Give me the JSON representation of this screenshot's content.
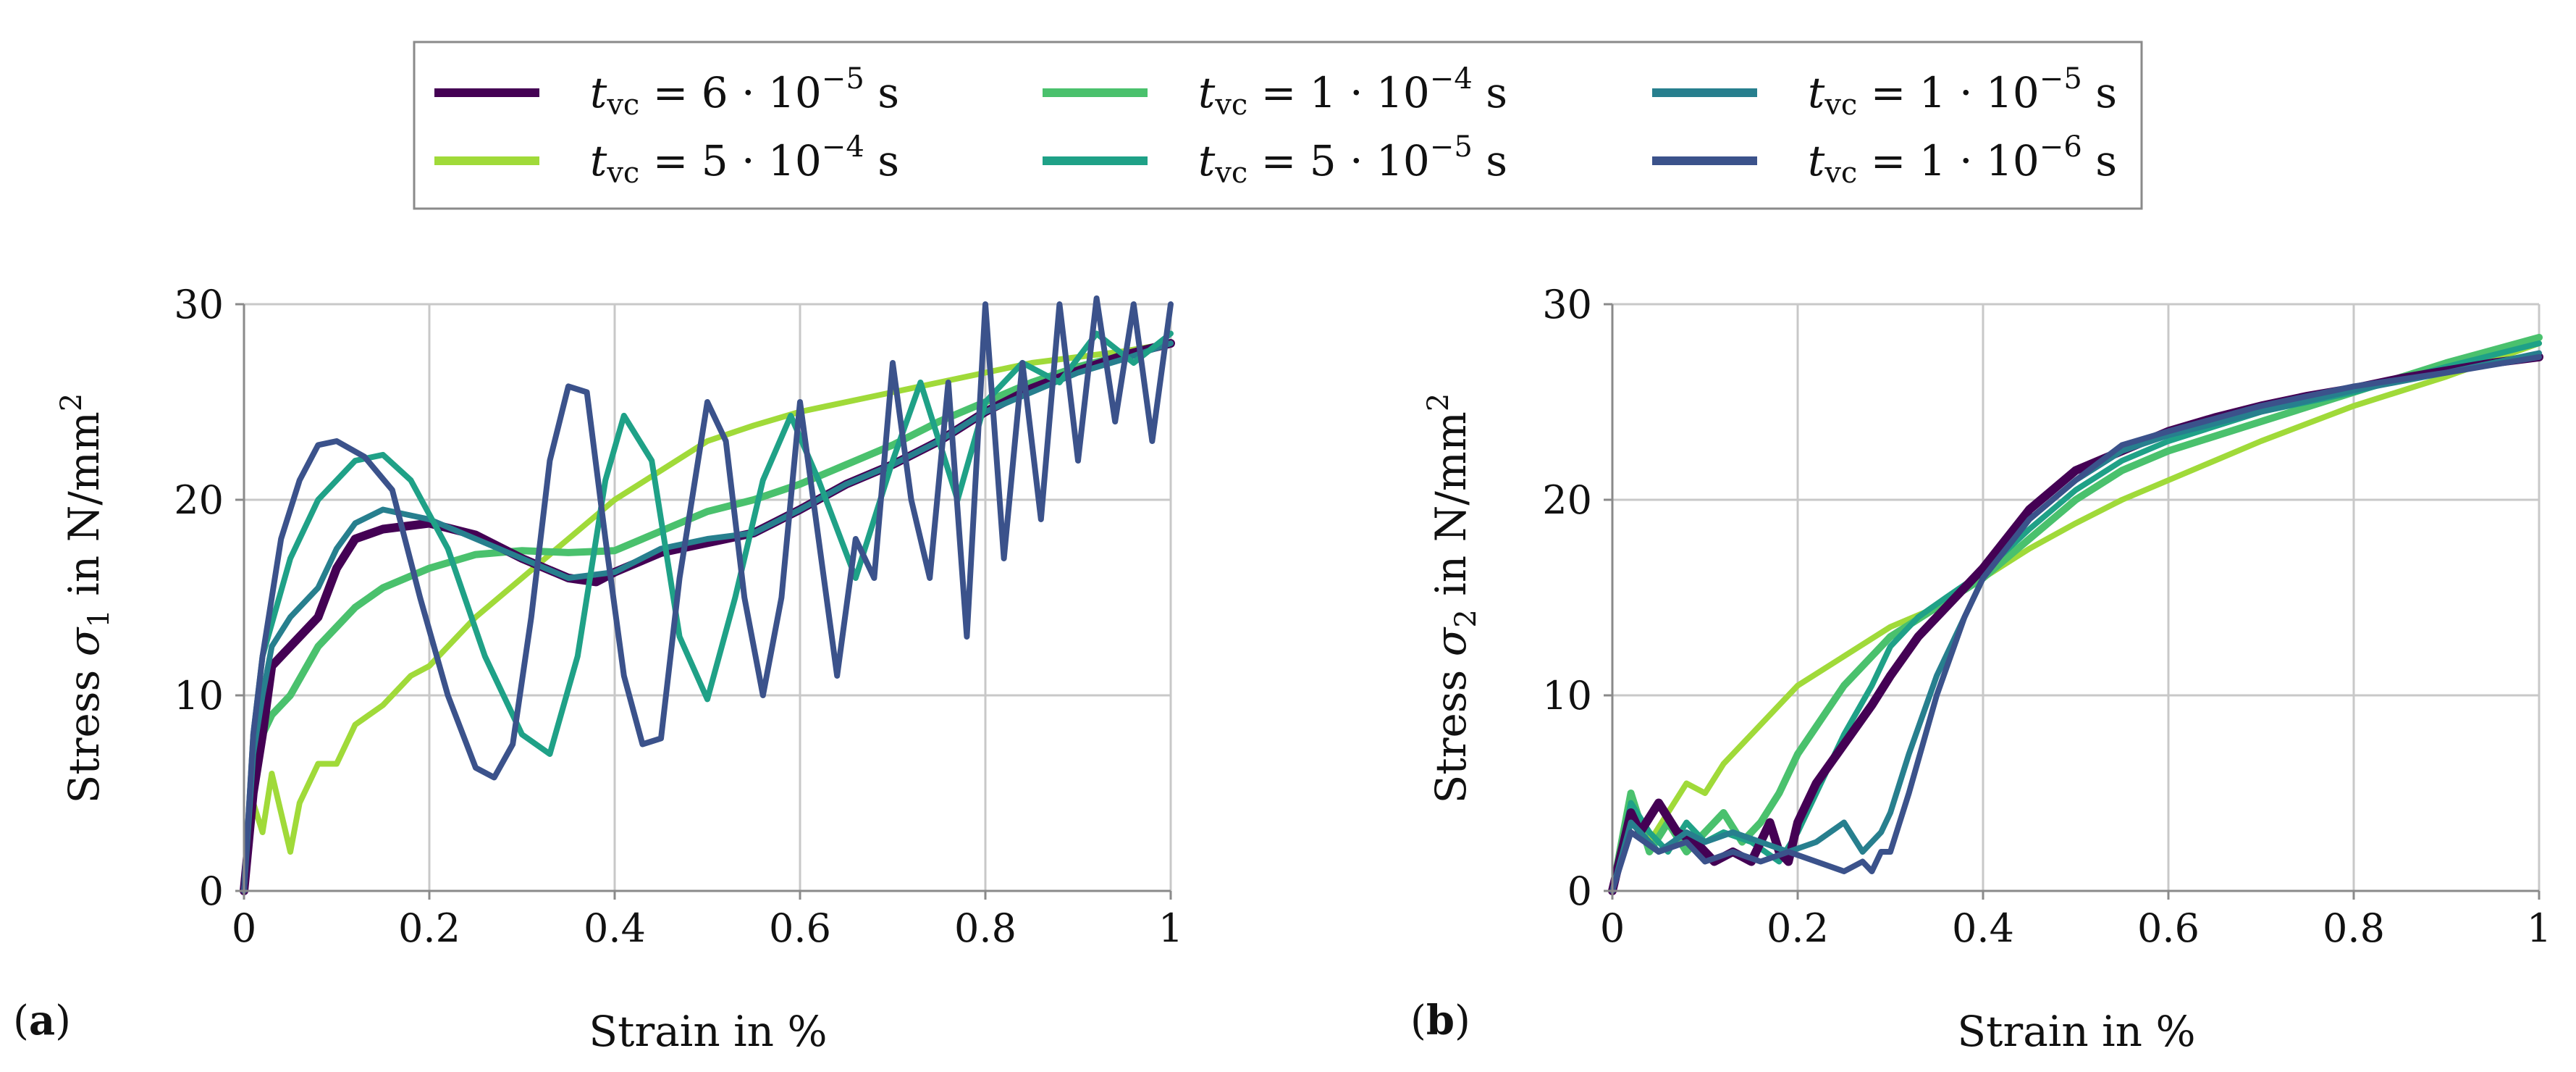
{
  "legend": {
    "entries": [
      {
        "key": "a",
        "label": "t_vc = 6 · 10^-5 s",
        "text": "= 6 · 10",
        "exp": "−5",
        "unit": "s",
        "color": "#440154"
      },
      {
        "key": "b",
        "label": "t_vc = 5 · 10^-4 s",
        "text": "= 5 · 10",
        "exp": "−4",
        "unit": "s",
        "color": "#a0da39"
      },
      {
        "key": "c",
        "label": "t_vc = 1 · 10^-4 s",
        "text": "= 1 · 10",
        "exp": "−4",
        "unit": "s",
        "color": "#4ac16d"
      },
      {
        "key": "d",
        "label": "t_vc = 5 · 10^-5 s",
        "text": "= 5 · 10",
        "exp": "−5",
        "unit": "s",
        "color": "#1fa187"
      },
      {
        "key": "e",
        "label": "t_vc = 1 · 10^-5 s",
        "text": "= 1 · 10",
        "exp": "−5",
        "unit": "s",
        "color": "#277f8e"
      },
      {
        "key": "f",
        "label": "t_vc = 1 · 10^-6 s",
        "text": "= 1 · 10",
        "exp": "−6",
        "unit": "s",
        "color": "#3b528b"
      }
    ],
    "symbol": "t",
    "subscript": "vc"
  },
  "chart_data": [
    {
      "type": "line",
      "panel": "(a)",
      "panel_letter": "a",
      "xlabel": "Strain in %",
      "ylabel": "Stress σ̄1 in N/mm²",
      "ylabel_prefix": "Stress ",
      "ylabel_symbol": "σ",
      "ylabel_sub": "1",
      "ylabel_suffix": " in N/mm",
      "ylabel_sup": "2",
      "xlim": [
        0,
        1
      ],
      "ylim": [
        0,
        30
      ],
      "xticks": [
        0,
        0.2,
        0.4,
        0.6,
        0.8,
        1
      ],
      "xtick_labels": [
        "0",
        "0.2",
        "0.4",
        "0.6",
        "0.8",
        "1"
      ],
      "yticks": [
        0,
        10,
        20,
        30
      ],
      "ytick_labels": [
        "0",
        "10",
        "20",
        "30"
      ],
      "grid": true,
      "series": [
        {
          "name": "t_vc = 5 · 10^-4 s",
          "color_key": "b",
          "x": [
            0,
            0.01,
            0.02,
            0.03,
            0.04,
            0.05,
            0.06,
            0.08,
            0.1,
            0.12,
            0.15,
            0.18,
            0.2,
            0.25,
            0.3,
            0.35,
            0.4,
            0.45,
            0.5,
            0.55,
            0.6,
            0.65,
            0.7,
            0.75,
            0.8,
            0.85,
            0.9,
            0.95,
            1.0
          ],
          "y": [
            0,
            4.5,
            3,
            6,
            4,
            2,
            4.5,
            6.5,
            6.5,
            8.5,
            9.5,
            11,
            11.5,
            14,
            16,
            18,
            20,
            21.5,
            23,
            23.8,
            24.5,
            25,
            25.5,
            26,
            26.5,
            27,
            27.3,
            27.6,
            28
          ]
        },
        {
          "name": "t_vc = 1 · 10^-4 s",
          "color_key": "c",
          "x": [
            0,
            0.01,
            0.02,
            0.03,
            0.05,
            0.08,
            0.1,
            0.12,
            0.15,
            0.2,
            0.25,
            0.3,
            0.35,
            0.4,
            0.45,
            0.5,
            0.55,
            0.6,
            0.65,
            0.7,
            0.75,
            0.8,
            0.85,
            0.9,
            0.95,
            1.0
          ],
          "y": [
            0,
            5,
            8,
            9,
            10,
            12.5,
            13.5,
            14.5,
            15.5,
            16.5,
            17.2,
            17.4,
            17.3,
            17.4,
            18.4,
            19.4,
            20,
            20.8,
            21.8,
            22.8,
            24,
            25,
            26,
            26.8,
            27.4,
            28
          ]
        },
        {
          "name": "t_vc = 6 · 10^-5 s",
          "color_key": "a",
          "x": [
            0,
            0.01,
            0.02,
            0.03,
            0.05,
            0.08,
            0.1,
            0.12,
            0.15,
            0.2,
            0.25,
            0.3,
            0.35,
            0.38,
            0.4,
            0.45,
            0.5,
            0.55,
            0.6,
            0.65,
            0.7,
            0.75,
            0.8,
            0.85,
            0.9,
            0.95,
            1.0
          ],
          "y": [
            0,
            5,
            8,
            11.5,
            12.5,
            14,
            16.5,
            18,
            18.5,
            18.8,
            18.2,
            17,
            16,
            15.8,
            16.3,
            17.3,
            17.8,
            18.3,
            19.5,
            20.8,
            21.8,
            23,
            24.5,
            25.7,
            26.6,
            27.4,
            28
          ]
        },
        {
          "name": "t_vc = 1 · 10^-5 s",
          "color_key": "e",
          "x": [
            0,
            0.01,
            0.02,
            0.03,
            0.05,
            0.08,
            0.1,
            0.12,
            0.15,
            0.2,
            0.25,
            0.3,
            0.35,
            0.4,
            0.45,
            0.5,
            0.55,
            0.6,
            0.65,
            0.7,
            0.75,
            0.8,
            0.85,
            0.9,
            0.95,
            1.0
          ],
          "y": [
            0,
            7,
            10,
            12.5,
            14,
            15.5,
            17.5,
            18.8,
            19.5,
            19,
            18,
            17,
            16,
            16.3,
            17.5,
            18,
            18.3,
            19.5,
            20.8,
            21.8,
            23,
            24.5,
            25.5,
            26.5,
            27.2,
            28
          ]
        },
        {
          "name": "t_vc = 5 · 10^-5 s",
          "color_key": "d",
          "x": [
            0,
            0.01,
            0.02,
            0.05,
            0.08,
            0.12,
            0.15,
            0.18,
            0.22,
            0.26,
            0.3,
            0.33,
            0.36,
            0.39,
            0.41,
            0.44,
            0.47,
            0.5,
            0.53,
            0.56,
            0.59,
            0.62,
            0.66,
            0.7,
            0.73,
            0.77,
            0.8,
            0.84,
            0.88,
            0.92,
            0.96,
            1.0
          ],
          "y": [
            0,
            8,
            12,
            17,
            20,
            22,
            22.3,
            21,
            17.5,
            12,
            8,
            7,
            12,
            21,
            24.3,
            22,
            13,
            9.8,
            15,
            21,
            24.3,
            21,
            16,
            22,
            26,
            20,
            25,
            27,
            26,
            28.5,
            27,
            28.5
          ]
        },
        {
          "name": "t_vc = 1 · 10^-6 s",
          "color_key": "f",
          "x": [
            0,
            0.01,
            0.02,
            0.04,
            0.06,
            0.08,
            0.1,
            0.13,
            0.16,
            0.19,
            0.22,
            0.25,
            0.27,
            0.29,
            0.31,
            0.33,
            0.35,
            0.37,
            0.39,
            0.41,
            0.43,
            0.45,
            0.47,
            0.5,
            0.52,
            0.54,
            0.56,
            0.58,
            0.6,
            0.62,
            0.64,
            0.66,
            0.68,
            0.7,
            0.72,
            0.74,
            0.76,
            0.78,
            0.8,
            0.82,
            0.84,
            0.86,
            0.88,
            0.9,
            0.92,
            0.94,
            0.96,
            0.98,
            1.0
          ],
          "y": [
            0,
            8,
            12,
            18,
            21,
            22.8,
            23,
            22.2,
            20.5,
            15,
            10,
            6.3,
            5.8,
            7.5,
            14,
            22,
            25.8,
            25.5,
            18,
            11,
            7.5,
            7.8,
            16,
            25,
            23,
            15,
            10,
            15,
            25,
            18,
            11,
            18,
            16,
            27,
            20,
            16,
            26,
            13,
            30,
            17,
            27,
            19,
            30,
            22,
            31,
            24,
            30,
            23,
            30
          ]
        }
      ]
    },
    {
      "type": "line",
      "panel": "(b)",
      "panel_letter": "b",
      "xlabel": "Strain in %",
      "ylabel": "Stress σ̄2 in N/mm²",
      "ylabel_prefix": "Stress ",
      "ylabel_symbol": "σ",
      "ylabel_sub": "2",
      "ylabel_suffix": " in N/mm",
      "ylabel_sup": "2",
      "xlim": [
        0,
        1
      ],
      "ylim": [
        0,
        30
      ],
      "xticks": [
        0,
        0.2,
        0.4,
        0.6,
        0.8,
        1
      ],
      "xtick_labels": [
        "0",
        "0.2",
        "0.4",
        "0.6",
        "0.8",
        "1"
      ],
      "yticks": [
        0,
        10,
        20,
        30
      ],
      "ytick_labels": [
        "0",
        "10",
        "20",
        "30"
      ],
      "grid": true,
      "series": [
        {
          "name": "t_vc = 5 · 10^-4 s",
          "color_key": "b",
          "x": [
            0,
            0.02,
            0.04,
            0.06,
            0.08,
            0.1,
            0.12,
            0.15,
            0.2,
            0.25,
            0.3,
            0.35,
            0.4,
            0.45,
            0.5,
            0.55,
            0.6,
            0.7,
            0.8,
            0.9,
            1.0
          ],
          "y": [
            0,
            4,
            2.5,
            4,
            5.5,
            5,
            6.5,
            8,
            10.5,
            12,
            13.5,
            14.5,
            16,
            17.5,
            18.8,
            20,
            21,
            23,
            24.8,
            26.3,
            28
          ]
        },
        {
          "name": "t_vc = 1 · 10^-4 s",
          "color_key": "c",
          "x": [
            0,
            0.02,
            0.04,
            0.06,
            0.08,
            0.1,
            0.12,
            0.14,
            0.16,
            0.18,
            0.2,
            0.25,
            0.3,
            0.35,
            0.4,
            0.45,
            0.5,
            0.55,
            0.6,
            0.7,
            0.8,
            0.9,
            1.0
          ],
          "y": [
            0,
            5,
            2,
            3.5,
            2,
            3,
            4,
            2.5,
            3.5,
            5,
            7,
            10.5,
            13,
            14.5,
            16,
            18,
            20,
            21.5,
            22.5,
            24,
            25.5,
            27,
            28.3
          ]
        },
        {
          "name": "t_vc = 5 · 10^-5 s",
          "color_key": "d",
          "x": [
            0,
            0.02,
            0.04,
            0.06,
            0.08,
            0.1,
            0.12,
            0.15,
            0.18,
            0.2,
            0.22,
            0.25,
            0.28,
            0.3,
            0.33,
            0.36,
            0.4,
            0.45,
            0.5,
            0.55,
            0.6,
            0.7,
            0.8,
            0.9,
            1.0
          ],
          "y": [
            0,
            4.5,
            3,
            2,
            3.5,
            2.5,
            3,
            2.5,
            1.5,
            3,
            5,
            8,
            10.5,
            12.5,
            14,
            15,
            16.3,
            18.5,
            20.5,
            22,
            23,
            24.5,
            25.5,
            26.8,
            28
          ]
        },
        {
          "name": "t_vc = 6 · 10^-5 s",
          "color_key": "a",
          "x": [
            0,
            0.02,
            0.03,
            0.05,
            0.07,
            0.09,
            0.11,
            0.13,
            0.15,
            0.17,
            0.18,
            0.19,
            0.2,
            0.22,
            0.25,
            0.28,
            0.3,
            0.33,
            0.36,
            0.4,
            0.45,
            0.5,
            0.55,
            0.6,
            0.65,
            0.7,
            0.75,
            0.8,
            0.85,
            0.9,
            0.95,
            1.0
          ],
          "y": [
            0,
            4,
            3,
            4.5,
            3,
            2.5,
            1.5,
            2,
            1.5,
            3.5,
            2,
            1.5,
            3.5,
            5.5,
            7.5,
            9.5,
            11,
            13,
            14.5,
            16.5,
            19.5,
            21.5,
            22.5,
            23.5,
            24.2,
            24.8,
            25.3,
            25.7,
            26.2,
            26.6,
            27,
            27.3
          ]
        },
        {
          "name": "t_vc = 1 · 10^-5 s",
          "color_key": "e",
          "x": [
            0,
            0.02,
            0.05,
            0.08,
            0.1,
            0.13,
            0.16,
            0.19,
            0.22,
            0.25,
            0.27,
            0.29,
            0.3,
            0.32,
            0.35,
            0.38,
            0.4,
            0.45,
            0.5,
            0.55,
            0.6,
            0.7,
            0.8,
            0.9,
            1.0
          ],
          "y": [
            0,
            3.5,
            2,
            3,
            2.5,
            3,
            2.5,
            2,
            2.5,
            3.5,
            2,
            3,
            4,
            7,
            11,
            14,
            16,
            19,
            21,
            22.5,
            23.3,
            24.5,
            25.6,
            26.5,
            27.5
          ]
        },
        {
          "name": "t_vc = 1 · 10^-6 s",
          "color_key": "f",
          "x": [
            0,
            0.02,
            0.05,
            0.08,
            0.1,
            0.13,
            0.16,
            0.19,
            0.22,
            0.25,
            0.27,
            0.28,
            0.29,
            0.3,
            0.32,
            0.35,
            0.38,
            0.4,
            0.45,
            0.5,
            0.55,
            0.6,
            0.7,
            0.8,
            0.9,
            1.0
          ],
          "y": [
            0,
            3,
            2,
            2.5,
            1.5,
            2,
            1.5,
            2,
            1.5,
            1,
            1.5,
            1,
            2,
            2,
            5,
            10,
            14,
            16,
            19,
            21,
            22.8,
            23.5,
            24.8,
            25.8,
            26.5,
            27.3
          ]
        }
      ]
    }
  ]
}
